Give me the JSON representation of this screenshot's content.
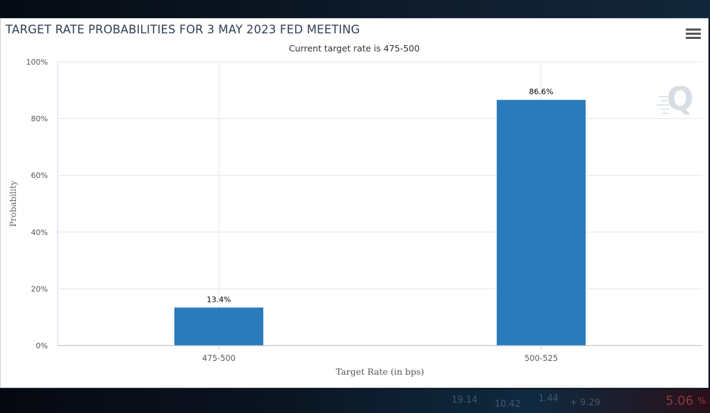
{
  "header": {
    "title": "TARGET RATE PROBABILITIES FOR 3 MAY 2023 FED MEETING",
    "menu_icon": "hamburger-menu-icon"
  },
  "background": {
    "ticker_bottom": [
      "19.14",
      "10.42",
      "+ 9.29",
      "1.44",
      "5.06",
      "%"
    ]
  },
  "chart_data": {
    "type": "bar",
    "title": "TARGET RATE PROBABILITIES FOR 3 MAY 2023 FED MEETING",
    "subtitle": "Current target rate is 475-500",
    "categories": [
      "475-500",
      "500-525"
    ],
    "values": [
      13.4,
      86.6
    ],
    "data_labels": [
      "13.4%",
      "86.6%"
    ],
    "xlabel": "Target Rate (in bps)",
    "ylabel": "Probability",
    "ylim": [
      0,
      100
    ],
    "y_ticks": [
      0,
      20,
      40,
      60,
      80,
      100
    ],
    "y_tick_labels": [
      "0%",
      "20%",
      "40%",
      "60%",
      "80%",
      "100%"
    ],
    "grid": true,
    "bar_color": "#2b7bba",
    "watermark": "Q"
  }
}
